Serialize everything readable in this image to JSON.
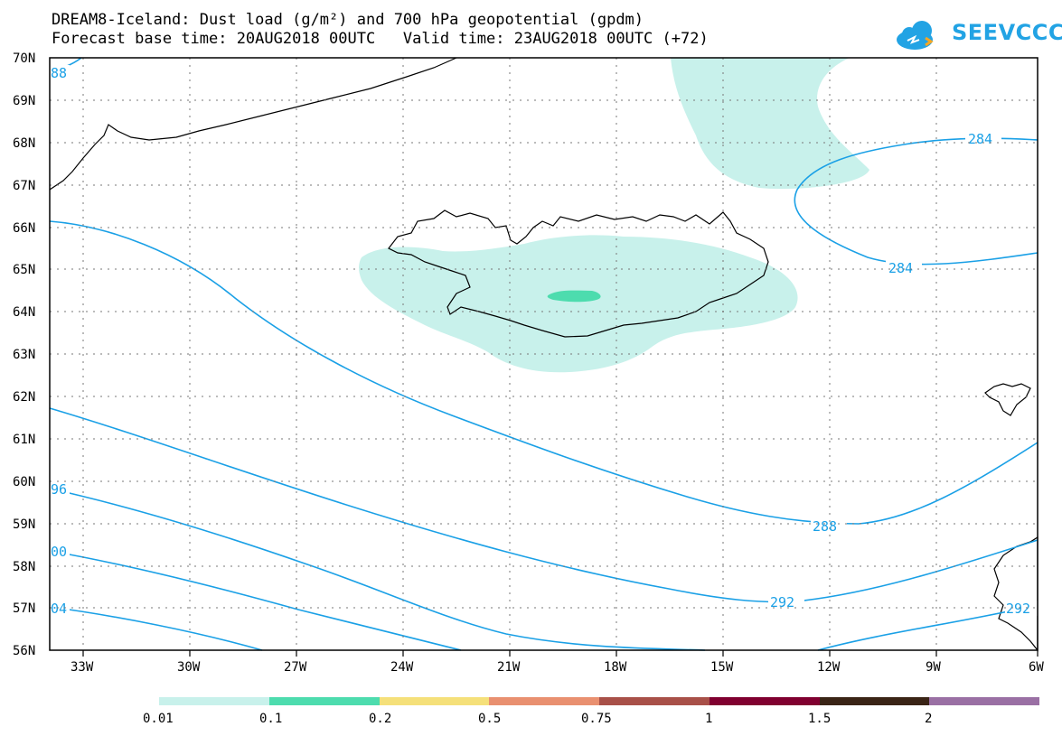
{
  "title": {
    "line1": "DREAM8-Iceland: Dust load (g/m²) and 700 hPa geopotential (gpdm)",
    "line2": "Forecast base time: 20AUG2018 00UTC   Valid time: 23AUG2018 00UTC (+72)"
  },
  "logo": {
    "text": "SEEVCCC"
  },
  "map": {
    "lat_labels": [
      "70N",
      "69N",
      "68N",
      "67N",
      "66N",
      "65N",
      "64N",
      "63N",
      "62N",
      "61N",
      "60N",
      "59N",
      "58N",
      "57N",
      "56N"
    ],
    "lon_labels": [
      "33W",
      "30W",
      "27W",
      "24W",
      "21W",
      "18W",
      "15W",
      "12W",
      "9W",
      "6W"
    ],
    "contour_labels": [
      "88",
      "284",
      "284",
      "288",
      "96",
      "292",
      "00",
      "04",
      "292"
    ],
    "colors": {
      "contour": "#1aa0e6",
      "dust_low": "#c8f1eb",
      "dust_mid": "#4ddcae"
    }
  },
  "colorbar": {
    "labels": [
      "0.01",
      "0.1",
      "0.2",
      "0.5",
      "0.75",
      "1",
      "1.5",
      "2"
    ],
    "colors": [
      "#c8f1eb",
      "#4ddcae",
      "#f5e07a",
      "#e99070",
      "#a85048",
      "#800030",
      "#3a2416",
      "#9a70a4"
    ]
  }
}
